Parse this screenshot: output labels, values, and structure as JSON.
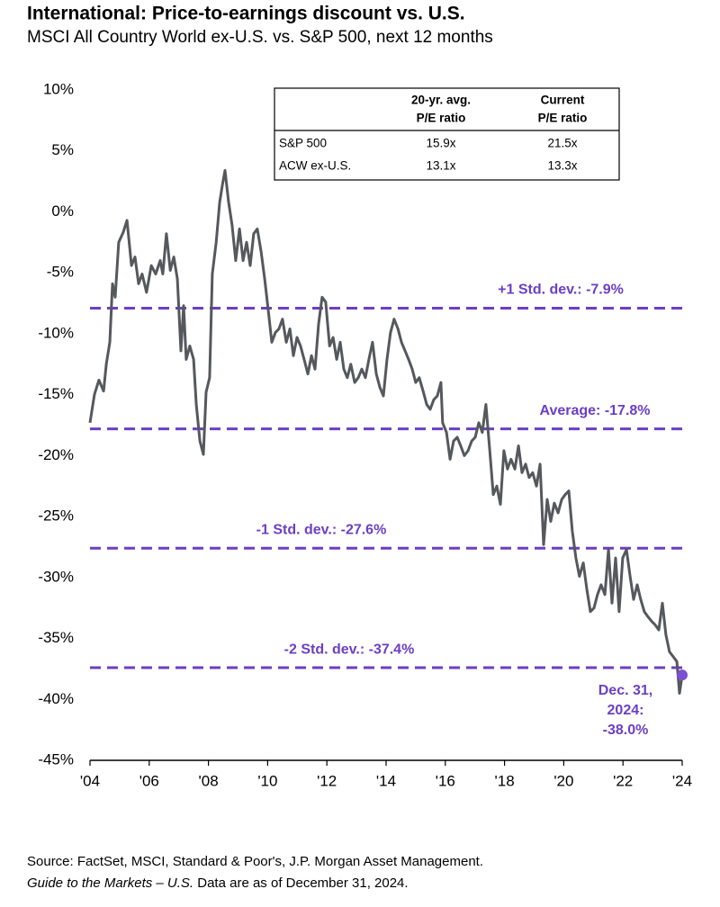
{
  "chart_data": {
    "type": "line",
    "title": "International: Price-to-earnings discount vs. U.S.",
    "subtitle": "MSCI All Country World ex-U.S. vs. S&P 500, next 12 months",
    "x": [
      2004.0,
      2004.15,
      2004.3,
      2004.46,
      2004.55,
      2004.67,
      2004.76,
      2004.85,
      2004.97,
      2005.12,
      2005.25,
      2005.4,
      2005.52,
      2005.64,
      2005.76,
      2005.91,
      2006.07,
      2006.22,
      2006.37,
      2006.46,
      2006.58,
      2006.71,
      2006.83,
      2006.95,
      2007.07,
      2007.16,
      2007.25,
      2007.37,
      2007.5,
      2007.59,
      2007.71,
      2007.83,
      2007.92,
      2008.04,
      2008.13,
      2008.26,
      2008.38,
      2008.47,
      2008.56,
      2008.68,
      2008.8,
      2008.92,
      2009.05,
      2009.17,
      2009.29,
      2009.41,
      2009.53,
      2009.65,
      2009.78,
      2009.9,
      2010.02,
      2010.14,
      2010.26,
      2010.38,
      2010.5,
      2010.63,
      2010.75,
      2010.87,
      2010.99,
      2011.11,
      2011.23,
      2011.36,
      2011.48,
      2011.6,
      2011.72,
      2011.84,
      2011.96,
      2012.09,
      2012.21,
      2012.33,
      2012.45,
      2012.57,
      2012.69,
      2012.81,
      2012.94,
      2013.06,
      2013.18,
      2013.3,
      2013.42,
      2013.54,
      2013.67,
      2013.79,
      2013.91,
      2014.03,
      2014.15,
      2014.27,
      2014.4,
      2014.52,
      2014.64,
      2014.76,
      2014.88,
      2015.0,
      2015.12,
      2015.25,
      2015.37,
      2015.49,
      2015.61,
      2015.73,
      2015.85,
      2015.91,
      2016.04,
      2016.16,
      2016.28,
      2016.4,
      2016.52,
      2016.64,
      2016.77,
      2016.89,
      2017.01,
      2017.13,
      2017.25,
      2017.37,
      2017.5,
      2017.62,
      2017.74,
      2017.86,
      2017.98,
      2018.1,
      2018.22,
      2018.35,
      2018.47,
      2018.59,
      2018.71,
      2018.83,
      2018.95,
      2019.08,
      2019.2,
      2019.32,
      2019.44,
      2019.56,
      2019.68,
      2019.81,
      2019.93,
      2020.05,
      2020.17,
      2020.29,
      2020.41,
      2020.53,
      2020.66,
      2020.78,
      2020.9,
      2021.02,
      2021.14,
      2021.26,
      2021.39,
      2021.51,
      2021.63,
      2021.75,
      2021.87,
      2021.99,
      2022.12,
      2022.24,
      2022.36,
      2022.48,
      2022.6,
      2022.72,
      2022.84,
      2022.97,
      2023.09,
      2023.21,
      2023.33,
      2023.45,
      2023.57,
      2023.7,
      2023.82,
      2023.91,
      2024.0
    ],
    "series": [
      {
        "name": "P/E discount",
        "color": "#55585c",
        "values": [
          -17.3,
          -15,
          -13.8,
          -14.7,
          -12.5,
          -10.7,
          -5.9,
          -7,
          -2.5,
          -1.7,
          -0.7,
          -4.4,
          -3.7,
          -5.9,
          -5.1,
          -6.6,
          -4.4,
          -5.1,
          -4,
          -5.1,
          -1.8,
          -4.8,
          -3.7,
          -5.5,
          -11.4,
          -7.7,
          -12.1,
          -11,
          -12.1,
          -15.8,
          -18.8,
          -19.9,
          -14.8,
          -13.6,
          -5.1,
          -2.5,
          0.8,
          2.2,
          3.4,
          0.8,
          -1.1,
          -4,
          -1.4,
          -4,
          -2.5,
          -4.4,
          -1.8,
          -1.4,
          -3.3,
          -5.5,
          -8.1,
          -10.7,
          -9.9,
          -9.6,
          -8.8,
          -10.7,
          -9.6,
          -11.8,
          -10.3,
          -11,
          -12.1,
          -13.3,
          -11.8,
          -12.9,
          -9.2,
          -7,
          -7.4,
          -11,
          -10.3,
          -12.1,
          -10.7,
          -12.9,
          -13.6,
          -12.5,
          -14,
          -13.6,
          -12.9,
          -13.6,
          -12.1,
          -10.7,
          -13.3,
          -14.4,
          -15.1,
          -12.1,
          -9.9,
          -8.8,
          -9.6,
          -10.7,
          -11.4,
          -12.1,
          -12.9,
          -14,
          -13.6,
          -14.7,
          -15.8,
          -16.2,
          -15.4,
          -15.1,
          -14,
          -17.3,
          -18.1,
          -20.3,
          -18.8,
          -18.5,
          -19.2,
          -20,
          -19.6,
          -18.8,
          -18.5,
          -17.3,
          -18.1,
          -15.8,
          -19.6,
          -23.2,
          -22.5,
          -24,
          -19.6,
          -21.1,
          -20.3,
          -21.1,
          -19.2,
          -21.4,
          -20.7,
          -21.8,
          -21.4,
          -22.5,
          -20.7,
          -27.3,
          -23.6,
          -25.4,
          -23.9,
          -24.7,
          -23.6,
          -23.2,
          -22.9,
          -26.2,
          -28.4,
          -29.9,
          -28.8,
          -31,
          -32.8,
          -32.5,
          -31.4,
          -30.6,
          -31.4,
          -27.7,
          -32.1,
          -28.4,
          -32.8,
          -28.4,
          -27.7,
          -29.9,
          -31.8,
          -30.6,
          -31.8,
          -32.8,
          -33.2,
          -33.6,
          -33.9,
          -34.3,
          -32.1,
          -34.7,
          -36.1,
          -36.5,
          -36.9,
          -39.5,
          -38.0
        ]
      }
    ],
    "end_marker_color": "#7b4fd1",
    "end_label_lines": [
      "Dec. 31,",
      "2024:",
      "-38.0%"
    ],
    "reference_lines": [
      {
        "value": -7.9,
        "label": "+1 Std. dev.: -7.9%"
      },
      {
        "value": -17.8,
        "label": "Average: -17.8%"
      },
      {
        "value": -27.6,
        "label": "-1 Std. dev.: -27.6%"
      },
      {
        "value": -37.4,
        "label": "-2 Std. dev.: -37.4%"
      }
    ],
    "reference_color": "#6b3fc4",
    "xlim": [
      2004,
      2024
    ],
    "xticks": [
      {
        "value": 2004,
        "label": "'04"
      },
      {
        "value": 2006,
        "label": "'06"
      },
      {
        "value": 2008,
        "label": "'08"
      },
      {
        "value": 2010,
        "label": "'10"
      },
      {
        "value": 2012,
        "label": "'12"
      },
      {
        "value": 2014,
        "label": "'14"
      },
      {
        "value": 2016,
        "label": "'16"
      },
      {
        "value": 2018,
        "label": "'18"
      },
      {
        "value": 2020,
        "label": "'20"
      },
      {
        "value": 2022,
        "label": "'22"
      },
      {
        "value": 2024,
        "label": "'24"
      }
    ],
    "ylim": [
      -45,
      10
    ],
    "yticks": [
      {
        "value": 10,
        "label": "10%"
      },
      {
        "value": 5,
        "label": "5%"
      },
      {
        "value": 0,
        "label": "0%"
      },
      {
        "value": -5,
        "label": "-5%"
      },
      {
        "value": -10,
        "label": "-10%"
      },
      {
        "value": -15,
        "label": "-15%"
      },
      {
        "value": -20,
        "label": "-20%"
      },
      {
        "value": -25,
        "label": "-25%"
      },
      {
        "value": -30,
        "label": "-30%"
      },
      {
        "value": -35,
        "label": "-35%"
      },
      {
        "value": -40,
        "label": "-40%"
      },
      {
        "value": -45,
        "label": "-45%"
      }
    ],
    "table": {
      "header": [
        [
          "20-yr. avg.",
          "P/E ratio"
        ],
        [
          "Current",
          "P/E ratio"
        ]
      ],
      "rows": [
        [
          "S&P 500",
          "15.9x",
          "21.5x"
        ],
        [
          "ACW ex-U.S.",
          "13.1x",
          "13.3x"
        ]
      ]
    },
    "source": "Source: FactSet, MSCI, Standard & Poor's, J.P. Morgan Asset Management.",
    "note_italic": "Guide to the Markets – U.S.",
    "note": " Data are as of December 31, 2024."
  }
}
